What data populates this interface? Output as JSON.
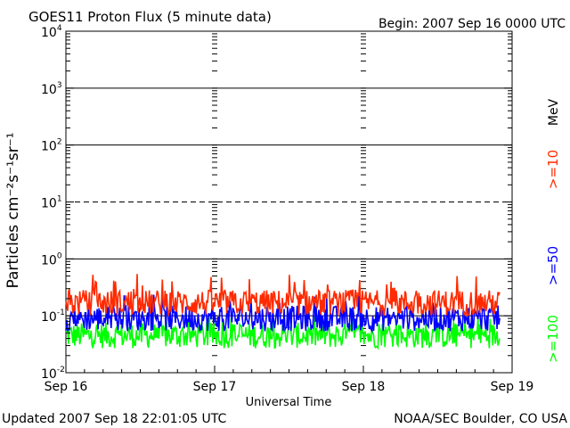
{
  "chart_data": {
    "type": "line",
    "title": "GOES11 Proton Flux (5 minute data)",
    "begin_label": "Begin: 2007 Sep 16 0000 UTC",
    "xlabel": "Universal Time",
    "ylabel": "Particles cm⁻²s⁻¹sr⁻¹",
    "y_scale": "log",
    "ylim": [
      0.01,
      10000
    ],
    "xlim": [
      "2007-09-16 00:00",
      "2007-09-19 00:00"
    ],
    "x_ticks": [
      "Sep 16",
      "Sep 17",
      "Sep 18",
      "Sep 19"
    ],
    "y_ticks": [
      {
        "base": "10",
        "exp": "4"
      },
      {
        "base": "10",
        "exp": "3"
      },
      {
        "base": "10",
        "exp": "2"
      },
      {
        "base": "10",
        "exp": "1"
      },
      {
        "base": "10",
        "exp": "0"
      },
      {
        "base": "10",
        "exp": "-1"
      },
      {
        "base": "10",
        "exp": "-2"
      }
    ],
    "right_label_unit": "MeV",
    "series": [
      {
        "name": ">=10",
        "color": "#ff2a00",
        "typical_value": 0.17,
        "range": [
          0.1,
          0.55
        ]
      },
      {
        "name": ">=50",
        "color": "#0000ff",
        "typical_value": 0.09,
        "range": [
          0.05,
          0.25
        ]
      },
      {
        "name": ">=100",
        "color": "#00ff00",
        "typical_value": 0.045,
        "range": [
          0.025,
          0.1
        ]
      }
    ],
    "reference_lines": [
      {
        "value": 1000,
        "style": "solid"
      },
      {
        "value": 100,
        "style": "solid"
      },
      {
        "value": 10,
        "style": "dashed"
      },
      {
        "value": 1,
        "style": "solid"
      },
      {
        "value": 0.1,
        "style": "solid"
      }
    ]
  },
  "footer": {
    "updated": "Updated 2007 Sep 18 22:01:05 UTC",
    "credit": "NOAA/SEC Boulder, CO USA"
  }
}
